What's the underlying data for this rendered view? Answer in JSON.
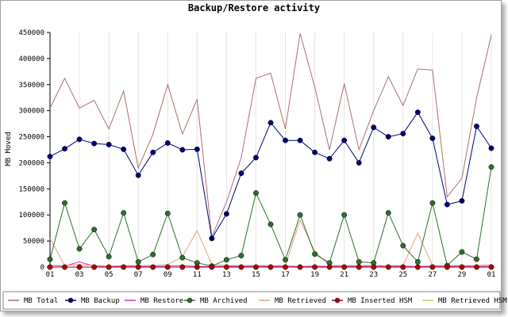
{
  "chart_data": {
    "type": "line",
    "title": "Backup/Restore activity",
    "xlabel": "",
    "ylabel": "MB Moved",
    "ylim": [
      0,
      450000
    ],
    "yticks": [
      0,
      50000,
      100000,
      150000,
      200000,
      250000,
      300000,
      350000,
      400000,
      450000
    ],
    "x": [
      "01",
      "02",
      "03",
      "04",
      "05",
      "06",
      "07",
      "08",
      "09",
      "10",
      "11",
      "12",
      "13",
      "14",
      "15",
      "16",
      "17",
      "18",
      "19",
      "20",
      "21",
      "22",
      "23",
      "24",
      "25",
      "26",
      "27",
      "28",
      "29",
      "30",
      "01"
    ],
    "xtick_labels": [
      "01",
      "03",
      "05",
      "07",
      "09",
      "11",
      "13",
      "15",
      "17",
      "19",
      "21",
      "23",
      "25",
      "27",
      "29",
      "01"
    ],
    "grid": "vertical",
    "legend_position": "bottom",
    "series": [
      {
        "name": "MB Total",
        "color": "#a87070",
        "marker": "none",
        "values": [
          305000,
          362000,
          305000,
          320000,
          265000,
          338000,
          190000,
          255000,
          350000,
          255000,
          322000,
          58000,
          125000,
          210000,
          362000,
          372000,
          265000,
          448000,
          345000,
          225000,
          352000,
          225000,
          300000,
          365000,
          310000,
          380000,
          378000,
          135000,
          170000,
          325000,
          445000
        ]
      },
      {
        "name": "MB Backup",
        "color": "#00007a",
        "marker": "circle",
        "values": [
          212000,
          227000,
          245000,
          237000,
          235000,
          226000,
          176000,
          220000,
          238000,
          225000,
          226000,
          55000,
          102000,
          180000,
          210000,
          277000,
          243000,
          243000,
          220000,
          208000,
          243000,
          200000,
          268000,
          250000,
          256000,
          297000,
          247000,
          120000,
          127000,
          270000,
          228000
        ]
      },
      {
        "name": "MB Restore",
        "color": "#cc33cc",
        "marker": "none",
        "values": [
          3000,
          2000,
          10000,
          2000,
          1000,
          2000,
          1000,
          1000,
          2000,
          3000,
          1000,
          1000,
          2000,
          1000,
          2000,
          1000,
          2000,
          1000,
          2000,
          1000,
          2000,
          1000,
          2000,
          1000,
          2000,
          1000,
          2000,
          1000,
          2000,
          1000,
          2000
        ]
      },
      {
        "name": "MB Archived",
        "color": "#2e6e2e",
        "marker": "circle",
        "values": [
          15000,
          123000,
          35000,
          72000,
          20000,
          104000,
          10000,
          24000,
          103000,
          18000,
          8000,
          2000,
          14000,
          22000,
          142000,
          82000,
          14000,
          100000,
          25000,
          8000,
          100000,
          10000,
          8000,
          104000,
          41000,
          10000,
          123000,
          3000,
          29000,
          15000,
          192000
        ]
      },
      {
        "name": "MB Retrieved",
        "color": "#e6a07a",
        "marker": "none",
        "values": [
          55000,
          3000,
          5000,
          3000,
          2000,
          3000,
          3000,
          3000,
          5000,
          20000,
          70000,
          5000,
          3000,
          3000,
          3000,
          3000,
          3000,
          90000,
          30000,
          3000,
          3000,
          3000,
          3000,
          3000,
          3000,
          65000,
          3000,
          3000,
          3000,
          3000,
          5000
        ]
      },
      {
        "name": "MB Inserted HSM",
        "color": "#b00000",
        "marker": "circle",
        "values": [
          0,
          0,
          0,
          0,
          0,
          0,
          0,
          0,
          0,
          0,
          0,
          0,
          0,
          0,
          0,
          0,
          0,
          0,
          0,
          0,
          0,
          0,
          0,
          0,
          0,
          0,
          0,
          0,
          0,
          0,
          0
        ]
      },
      {
        "name": "MB Retrieved HSM",
        "color": "#cccc44",
        "marker": "none",
        "values": [
          0,
          0,
          0,
          0,
          0,
          0,
          0,
          0,
          0,
          0,
          0,
          0,
          0,
          0,
          0,
          0,
          0,
          0,
          0,
          0,
          0,
          0,
          0,
          0,
          0,
          0,
          0,
          0,
          0,
          0,
          0
        ]
      }
    ]
  }
}
